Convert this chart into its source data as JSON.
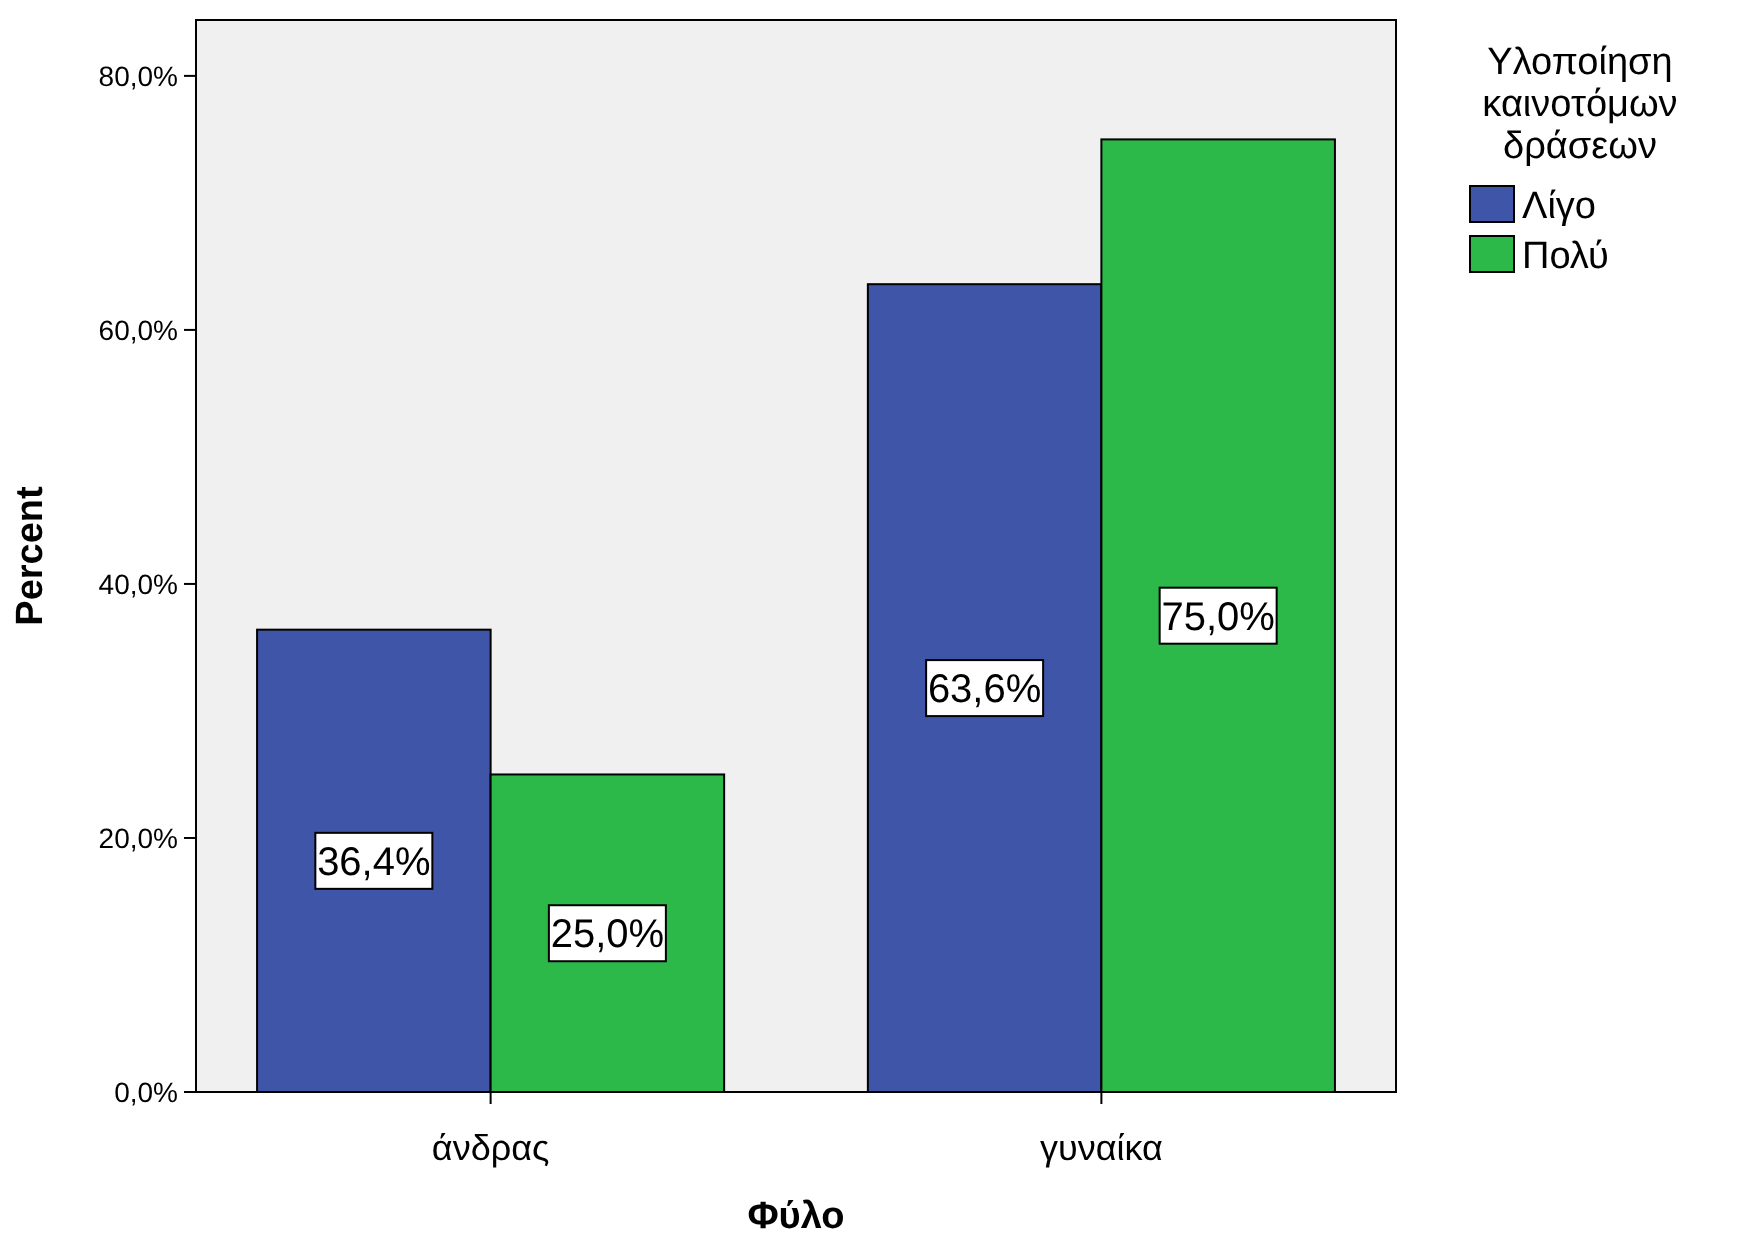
{
  "chart_data": {
    "type": "bar",
    "xlabel": "Φύλο",
    "ylabel": "Percent",
    "legend_title": "Υλοποίηση καινοτόμων δράσεων",
    "categories": [
      "άνδρας",
      "γυναίκα"
    ],
    "series": [
      {
        "name": "Λίγο",
        "color": "#3f56a8",
        "values": [
          36.4,
          63.6
        ],
        "value_labels": [
          "36,4%",
          "63,6%"
        ]
      },
      {
        "name": "Πολύ",
        "color": "#2db84a",
        "values": [
          25.0,
          75.0
        ],
        "value_labels": [
          "25,0%",
          "75,0%"
        ]
      }
    ],
    "ylim": [
      0,
      84.4
    ],
    "yticks": [
      {
        "value": 0,
        "label": "0,0%"
      },
      {
        "value": 20,
        "label": "20,0%"
      },
      {
        "value": 40,
        "label": "40,0%"
      },
      {
        "value": 60,
        "label": "60,0%"
      },
      {
        "value": 80,
        "label": "80,0%"
      }
    ],
    "grid": false,
    "legend": "right"
  }
}
